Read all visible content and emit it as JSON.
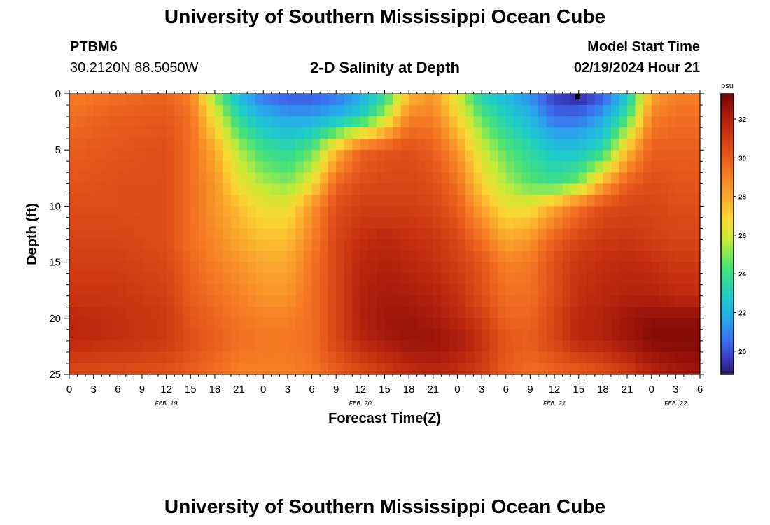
{
  "page": {
    "title_top": "University of Southern Mississippi Ocean Cube",
    "title_bottom": "University of Southern Mississippi Ocean Cube",
    "station_id": "PTBM6",
    "station_coords": "30.2120N  88.5050W",
    "chart_title": "2-D Salinity at Depth",
    "model_start_label": "Model Start Time",
    "model_start_value": "02/19/2024 Hour 21"
  },
  "chart_data": {
    "type": "heatmap",
    "title": "2-D Salinity at Depth",
    "xlabel": "Forecast Time(Z)",
    "ylabel": "Depth (ft)",
    "x_unit": "hours since 02/19 00Z",
    "xlim": [
      0,
      78
    ],
    "ylim": [
      0,
      25
    ],
    "x_ticks": [
      0,
      3,
      6,
      9,
      12,
      15,
      18,
      21,
      24,
      27,
      30,
      33,
      36,
      39,
      42,
      45,
      48,
      51,
      54,
      57,
      60,
      63,
      66,
      69,
      72,
      75,
      78
    ],
    "x_tick_labels": [
      "0",
      "3",
      "6",
      "9",
      "12",
      "15",
      "18",
      "21",
      "0",
      "3",
      "6",
      "9",
      "12",
      "15",
      "18",
      "21",
      "0",
      "3",
      "6",
      "9",
      "12",
      "15",
      "18",
      "21",
      "0",
      "3",
      "6"
    ],
    "date_labels": [
      {
        "x": 12,
        "label": "FEB 19"
      },
      {
        "x": 36,
        "label": "FEB 20"
      },
      {
        "x": 60,
        "label": "FEB 21"
      },
      {
        "x": 75,
        "label": "FEB 22"
      }
    ],
    "y_ticks": [
      0,
      5,
      10,
      15,
      20,
      25
    ],
    "colorbar": {
      "unit": "psu",
      "min": 18.8,
      "max": 33.3,
      "ticks": [
        20,
        22,
        24,
        26,
        28,
        30,
        32
      ]
    },
    "value_range_psu": [
      18.8,
      33.3
    ],
    "grid_x_hours": [
      0,
      6,
      12,
      15,
      18,
      21,
      24,
      27,
      30,
      33,
      36,
      39,
      42,
      45,
      48,
      51,
      54,
      57,
      60,
      63,
      66,
      69,
      72,
      75,
      78
    ],
    "grid_depth_ft": [
      0,
      2,
      5,
      8,
      10,
      13,
      15,
      18,
      20,
      22,
      25
    ],
    "salinity_psu": [
      [
        29.0,
        29.5,
        29.8,
        29.0,
        25.0,
        22.0,
        20.5,
        20.0,
        20.0,
        20.5,
        21.5,
        23.5,
        27.5,
        28.5,
        26.0,
        23.0,
        22.0,
        21.0,
        19.5,
        19.0,
        20.0,
        22.5,
        28.0,
        29.0,
        29.0
      ],
      [
        29.5,
        30.0,
        30.2,
        29.5,
        26.5,
        23.5,
        22.0,
        21.5,
        21.5,
        22.0,
        23.0,
        25.5,
        29.0,
        29.0,
        27.0,
        24.5,
        23.0,
        22.0,
        20.5,
        20.5,
        21.5,
        24.0,
        29.0,
        29.5,
        29.5
      ],
      [
        30.0,
        30.3,
        30.5,
        29.5,
        28.0,
        25.5,
        24.0,
        23.5,
        24.5,
        27.5,
        29.8,
        30.3,
        30.5,
        30.0,
        28.5,
        26.0,
        24.5,
        23.5,
        22.5,
        22.5,
        23.5,
        27.5,
        30.0,
        30.0,
        30.0
      ],
      [
        30.3,
        30.5,
        30.5,
        29.5,
        28.5,
        26.5,
        25.5,
        25.0,
        26.5,
        29.8,
        30.5,
        30.7,
        30.7,
        30.5,
        29.5,
        27.0,
        25.5,
        24.5,
        24.0,
        25.0,
        28.0,
        30.0,
        30.5,
        30.3,
        30.3
      ],
      [
        30.5,
        30.5,
        30.5,
        29.5,
        28.5,
        27.5,
        26.5,
        26.5,
        28.5,
        30.5,
        31.0,
        31.0,
        31.0,
        30.8,
        30.0,
        28.0,
        26.5,
        26.5,
        28.0,
        29.5,
        30.5,
        30.8,
        30.8,
        30.5,
        30.5
      ],
      [
        30.8,
        30.8,
        30.5,
        29.5,
        28.8,
        28.0,
        27.5,
        27.5,
        29.0,
        30.8,
        31.5,
        31.8,
        31.5,
        31.3,
        30.8,
        29.5,
        28.0,
        28.5,
        30.0,
        30.8,
        31.2,
        31.3,
        31.0,
        30.8,
        30.8
      ],
      [
        31.0,
        31.0,
        30.7,
        29.8,
        29.0,
        28.5,
        28.0,
        28.0,
        29.3,
        30.8,
        31.8,
        32.0,
        31.8,
        31.5,
        31.0,
        30.2,
        29.0,
        29.2,
        30.5,
        31.3,
        31.5,
        31.7,
        31.5,
        31.2,
        31.2
      ],
      [
        31.3,
        31.3,
        31.0,
        30.0,
        29.5,
        29.0,
        28.5,
        28.5,
        29.5,
        30.8,
        32.0,
        32.3,
        32.2,
        32.0,
        31.5,
        30.5,
        29.5,
        29.5,
        30.5,
        31.5,
        31.8,
        32.0,
        32.0,
        31.7,
        31.7
      ],
      [
        31.8,
        31.5,
        31.2,
        30.3,
        29.8,
        29.3,
        29.0,
        29.0,
        29.5,
        30.8,
        32.0,
        32.5,
        32.5,
        32.3,
        31.8,
        31.0,
        29.8,
        29.8,
        30.8,
        31.8,
        32.0,
        32.5,
        32.8,
        32.8,
        32.8
      ],
      [
        31.8,
        31.5,
        31.2,
        30.5,
        30.0,
        29.5,
        29.3,
        29.3,
        29.5,
        30.8,
        31.8,
        32.3,
        32.6,
        32.6,
        32.3,
        31.5,
        30.3,
        30.0,
        30.8,
        31.8,
        32.0,
        32.5,
        33.0,
        33.0,
        33.0
      ],
      [
        30.5,
        30.5,
        30.3,
        30.0,
        29.5,
        29.0,
        29.0,
        29.0,
        29.3,
        30.0,
        30.5,
        31.0,
        31.5,
        31.8,
        31.5,
        31.0,
        30.0,
        29.5,
        29.8,
        30.0,
        30.3,
        31.0,
        31.8,
        32.3,
        32.5
      ]
    ]
  }
}
